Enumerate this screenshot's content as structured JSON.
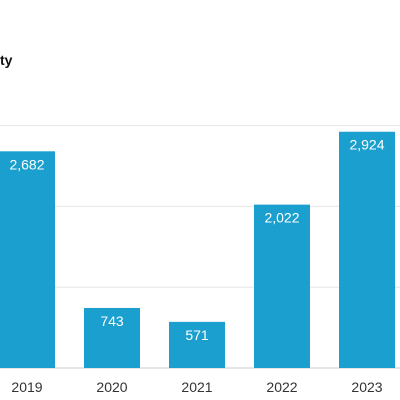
{
  "chart_data": {
    "type": "bar",
    "title": "ty",
    "categories": [
      "2019",
      "2020",
      "2021",
      "2022",
      "2023"
    ],
    "values": [
      2682,
      743,
      571,
      2022,
      2924
    ],
    "value_labels": [
      "2,682",
      "743",
      "571",
      "2,022",
      "2,924"
    ],
    "xlabel": "",
    "ylabel": "",
    "ylim": [
      0,
      3000
    ],
    "grid": true,
    "legend": "none",
    "colors": {
      "bar": "#1a9fce",
      "grid": "#e6e6e6",
      "axis": "#cccccc"
    }
  }
}
